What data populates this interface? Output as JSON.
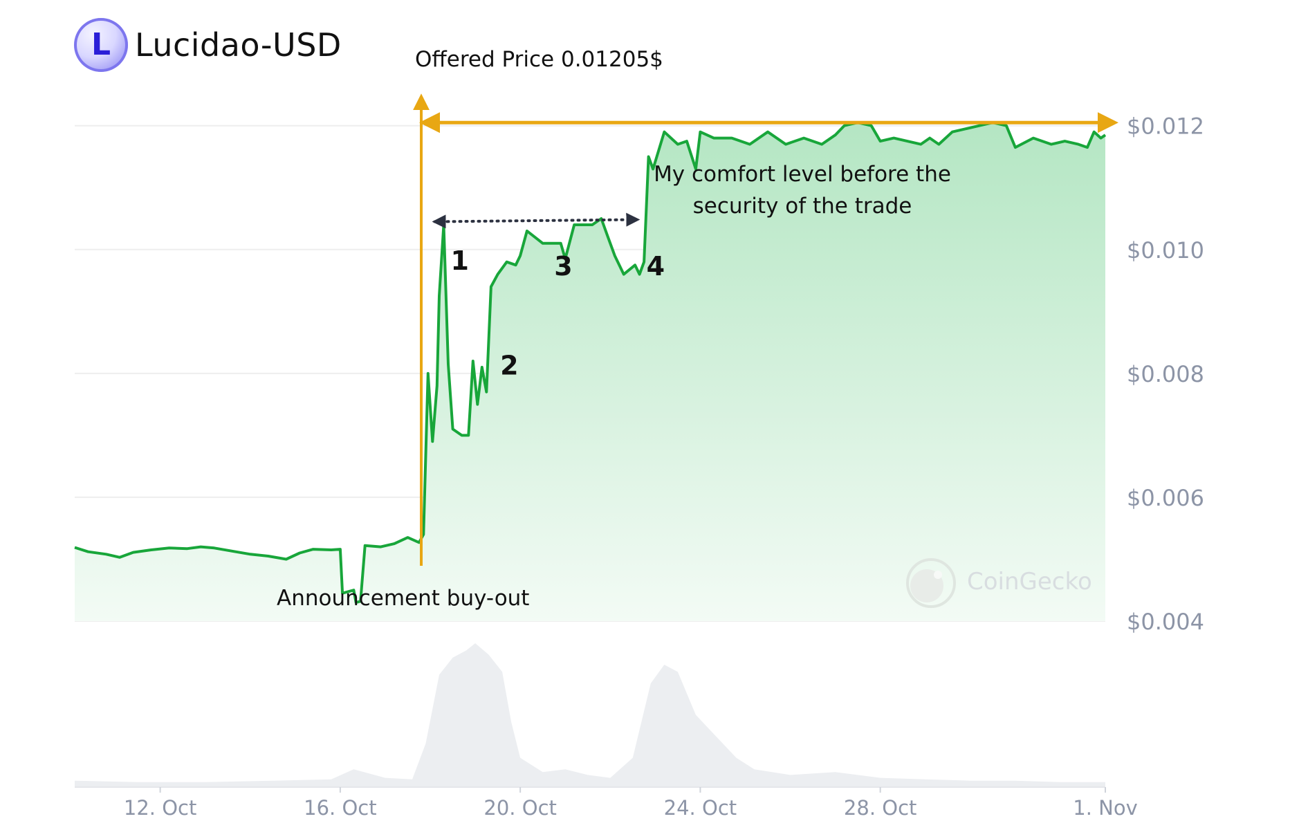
{
  "header": {
    "title": "Lucidao-USD",
    "logo_letter": "L"
  },
  "watermark": {
    "label": "CoinGecko"
  },
  "colors": {
    "line": "#18a63a",
    "area_top": "#b4e6c3",
    "area_bottom": "#f3fbf5",
    "annotation": "#e8a713",
    "comfort_arrow": "#2c3140",
    "grid": "#eeeeee",
    "axis_text": "#8c94a6",
    "volume": "#eceef1"
  },
  "chart_data": {
    "type": "area",
    "title": "Lucidao-USD",
    "y_tick_labels": [
      "$0.012",
      "$0.010",
      "$0.008",
      "$0.006",
      "$0.004"
    ],
    "y_ticks": [
      0.012,
      0.01,
      0.008,
      0.006,
      0.004
    ],
    "ylim": [
      0.004,
      0.0126
    ],
    "x_tick_labels": [
      "12. Oct",
      "16. Oct",
      "20. Oct",
      "24. Oct",
      "28. Oct",
      "1. Nov"
    ],
    "x_tick_days": [
      12,
      16,
      20,
      24,
      28,
      33
    ],
    "x_range_days": [
      10.1,
      33.0
    ],
    "grid": true,
    "y_axis_position": "right",
    "series": [
      {
        "points": [
          [
            10.1,
            0.00519
          ],
          [
            10.4,
            0.00512
          ],
          [
            10.8,
            0.00508
          ],
          [
            11.1,
            0.00503
          ],
          [
            11.4,
            0.00511
          ],
          [
            11.8,
            0.00515
          ],
          [
            12.2,
            0.00518
          ],
          [
            12.6,
            0.00517
          ],
          [
            12.9,
            0.0052
          ],
          [
            13.2,
            0.00518
          ],
          [
            13.6,
            0.00513
          ],
          [
            14.0,
            0.00508
          ],
          [
            14.4,
            0.00505
          ],
          [
            14.8,
            0.005
          ],
          [
            15.1,
            0.0051
          ],
          [
            15.4,
            0.00516
          ],
          [
            15.8,
            0.00515
          ],
          [
            16.0,
            0.00516
          ],
          [
            16.05,
            0.00445
          ],
          [
            16.3,
            0.0045
          ],
          [
            16.35,
            0.0043
          ],
          [
            16.45,
            0.00432
          ],
          [
            16.55,
            0.00522
          ],
          [
            16.9,
            0.0052
          ],
          [
            17.2,
            0.00525
          ],
          [
            17.5,
            0.00535
          ],
          [
            17.75,
            0.00527
          ],
          [
            17.85,
            0.0054
          ],
          [
            17.95,
            0.008
          ],
          [
            18.05,
            0.0069
          ],
          [
            18.15,
            0.0078
          ],
          [
            18.2,
            0.00925
          ],
          [
            18.3,
            0.0104
          ],
          [
            18.4,
            0.00815
          ],
          [
            18.5,
            0.0071
          ],
          [
            18.7,
            0.007
          ],
          [
            18.85,
            0.007
          ],
          [
            18.95,
            0.0082
          ],
          [
            19.05,
            0.0075
          ],
          [
            19.15,
            0.0081
          ],
          [
            19.25,
            0.0077
          ],
          [
            19.35,
            0.0094
          ],
          [
            19.5,
            0.0096
          ],
          [
            19.7,
            0.0098
          ],
          [
            19.9,
            0.00975
          ],
          [
            20.0,
            0.0099
          ],
          [
            20.15,
            0.0103
          ],
          [
            20.5,
            0.0101
          ],
          [
            20.9,
            0.0101
          ],
          [
            21.0,
            0.00985
          ],
          [
            21.2,
            0.0104
          ],
          [
            21.6,
            0.0104
          ],
          [
            21.8,
            0.0105
          ],
          [
            21.95,
            0.0102
          ],
          [
            22.1,
            0.0099
          ],
          [
            22.3,
            0.0096
          ],
          [
            22.55,
            0.00975
          ],
          [
            22.65,
            0.0096
          ],
          [
            22.75,
            0.0098
          ],
          [
            22.85,
            0.0115
          ],
          [
            22.95,
            0.0113
          ],
          [
            23.2,
            0.0119
          ],
          [
            23.5,
            0.0117
          ],
          [
            23.7,
            0.01175
          ],
          [
            23.9,
            0.0113
          ],
          [
            24.0,
            0.0119
          ],
          [
            24.3,
            0.0118
          ],
          [
            24.7,
            0.0118
          ],
          [
            25.1,
            0.0117
          ],
          [
            25.5,
            0.0119
          ],
          [
            25.9,
            0.0117
          ],
          [
            26.3,
            0.0118
          ],
          [
            26.7,
            0.0117
          ],
          [
            27.0,
            0.01185
          ],
          [
            27.2,
            0.012
          ],
          [
            27.5,
            0.01205
          ],
          [
            27.8,
            0.012
          ],
          [
            28.0,
            0.01175
          ],
          [
            28.3,
            0.0118
          ],
          [
            28.6,
            0.01175
          ],
          [
            28.9,
            0.0117
          ],
          [
            29.1,
            0.0118
          ],
          [
            29.3,
            0.0117
          ],
          [
            29.6,
            0.0119
          ],
          [
            29.9,
            0.01195
          ],
          [
            30.2,
            0.012
          ],
          [
            30.5,
            0.01205
          ],
          [
            30.8,
            0.012
          ],
          [
            31.0,
            0.01165
          ],
          [
            31.4,
            0.0118
          ],
          [
            31.8,
            0.0117
          ],
          [
            32.1,
            0.01175
          ],
          [
            32.4,
            0.0117
          ],
          [
            32.6,
            0.01165
          ],
          [
            32.75,
            0.0119
          ],
          [
            32.9,
            0.0118
          ],
          [
            33.0,
            0.01185
          ]
        ]
      }
    ],
    "volume_points": [
      [
        10.1,
        0.04
      ],
      [
        11.5,
        0.03
      ],
      [
        13.0,
        0.03
      ],
      [
        14.5,
        0.04
      ],
      [
        15.8,
        0.05
      ],
      [
        16.3,
        0.12
      ],
      [
        17.0,
        0.06
      ],
      [
        17.6,
        0.05
      ],
      [
        17.9,
        0.3
      ],
      [
        18.2,
        0.78
      ],
      [
        18.5,
        0.9
      ],
      [
        18.8,
        0.95
      ],
      [
        19.0,
        1.0
      ],
      [
        19.3,
        0.92
      ],
      [
        19.6,
        0.8
      ],
      [
        19.8,
        0.45
      ],
      [
        20.0,
        0.2
      ],
      [
        20.5,
        0.1
      ],
      [
        21.0,
        0.12
      ],
      [
        21.5,
        0.08
      ],
      [
        22.0,
        0.06
      ],
      [
        22.5,
        0.2
      ],
      [
        22.9,
        0.72
      ],
      [
        23.2,
        0.85
      ],
      [
        23.5,
        0.8
      ],
      [
        23.7,
        0.65
      ],
      [
        23.9,
        0.5
      ],
      [
        24.2,
        0.4
      ],
      [
        24.5,
        0.3
      ],
      [
        24.8,
        0.2
      ],
      [
        25.2,
        0.12
      ],
      [
        26.0,
        0.08
      ],
      [
        27.0,
        0.1
      ],
      [
        28.0,
        0.06
      ],
      [
        29.0,
        0.05
      ],
      [
        30.0,
        0.04
      ],
      [
        31.0,
        0.04
      ],
      [
        32.0,
        0.03
      ],
      [
        33.0,
        0.03
      ]
    ],
    "annotations": {
      "offered_price_label": "Offered Price 0.01205$",
      "offered_price_value": 0.01205,
      "offered_price_start_day": 17.8,
      "announcement_label": "Announcement buy-out",
      "announcement_day": 17.8,
      "comfort_label_line1": "My comfort level before the",
      "comfort_label_line2": "security of the trade",
      "comfort_from_day": 18.1,
      "comfort_to_day": 22.6,
      "comfort_value": 0.01045,
      "markers": [
        {
          "label": "1",
          "day": 18.3,
          "value": 0.00983
        },
        {
          "label": "2",
          "day": 19.4,
          "value": 0.00814
        },
        {
          "label": "3",
          "day": 20.6,
          "value": 0.00974
        },
        {
          "label": "4",
          "day": 22.65,
          "value": 0.00974
        }
      ]
    }
  }
}
